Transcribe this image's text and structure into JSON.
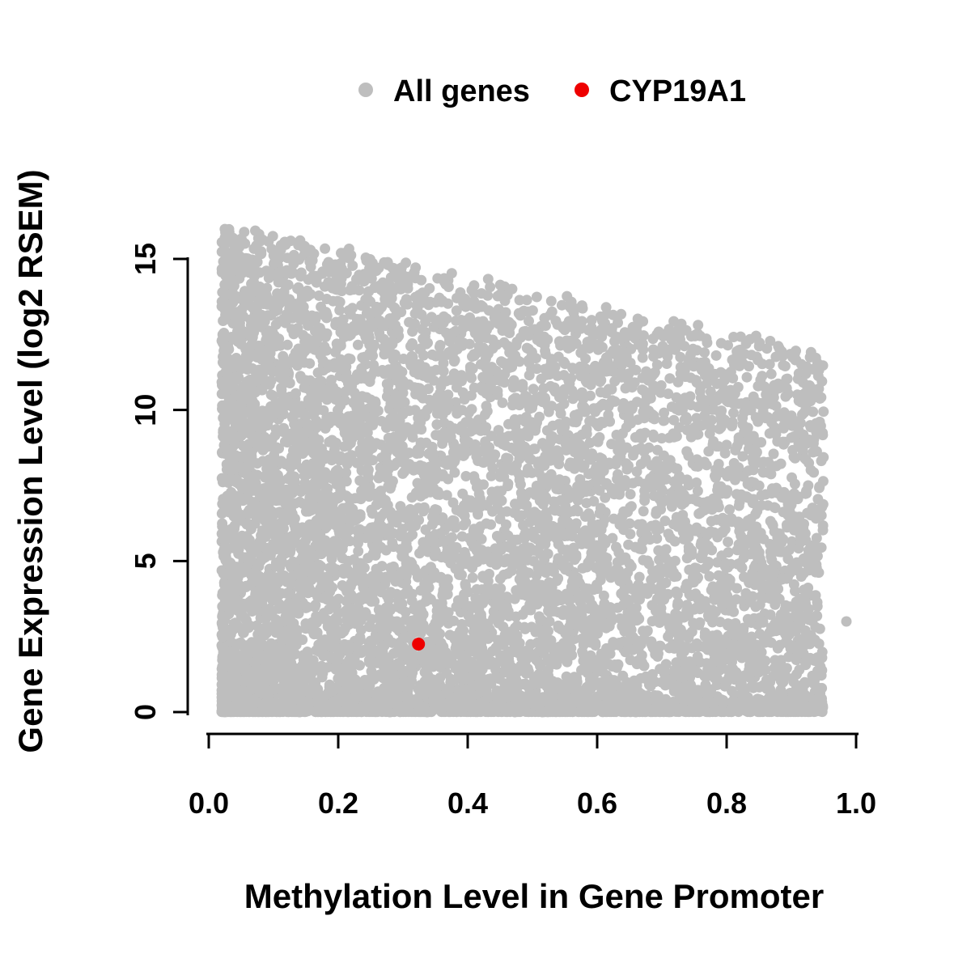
{
  "chart_data": {
    "type": "scatter",
    "title": "",
    "xlabel": "Methylation Level in Gene Promoter",
    "ylabel": "Gene Expression Level (log2 RSEM)",
    "xlim": [
      0.0,
      1.0
    ],
    "ylim": [
      0,
      15
    ],
    "x_ticks": [
      0.0,
      0.2,
      0.4,
      0.6,
      0.8,
      1.0
    ],
    "x_tick_labels": [
      "0.0",
      "0.2",
      "0.4",
      "0.6",
      "0.8",
      "1.0"
    ],
    "y_ticks": [
      0,
      5,
      10,
      15
    ],
    "y_tick_labels": [
      "0",
      "5",
      "10",
      "15"
    ],
    "grid": false,
    "legend": {
      "position": "top-center",
      "entries": [
        {
          "label": "All genes",
          "color": "#bebebe"
        },
        {
          "label": "CYP19A1",
          "color": "#ee0000"
        }
      ]
    },
    "series": [
      {
        "name": "All genes",
        "color": "#bebebe",
        "rendering": "procedural-cloud",
        "n_points": 8000,
        "seed": 42,
        "x_range": [
          0.02,
          0.95
        ],
        "x_skew": 1.35,
        "envelope": {
          "y_at_x0": 16.2,
          "slope": -4.6
        },
        "fractions": {
          "floor_band": 0.14,
          "bottom_heavy": 0.24,
          "body": 0.62
        },
        "top_jitter": 0.35,
        "outliers": [
          [
            0.985,
            3.0
          ]
        ]
      },
      {
        "name": "CYP19A1",
        "color": "#ee0000",
        "points": [
          [
            0.324,
            2.25
          ]
        ]
      }
    ]
  }
}
